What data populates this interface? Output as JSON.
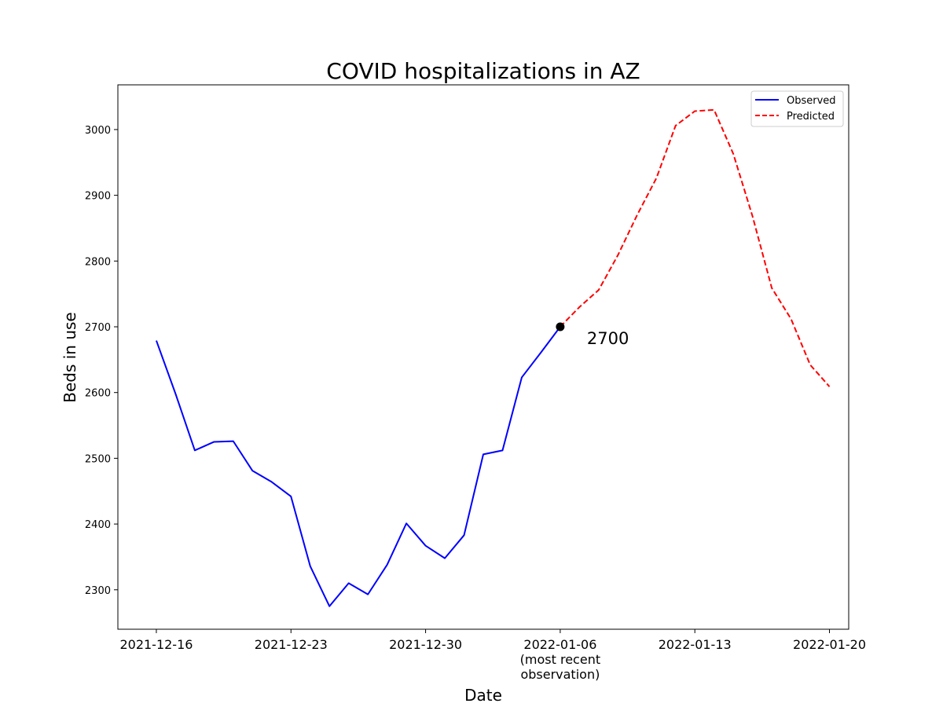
{
  "chart_data": {
    "type": "line",
    "title": "COVID hospitalizations in AZ",
    "xlabel": "Date",
    "ylabel": "Beds in use",
    "x_type": "date",
    "xlim": [
      "2021-12-14",
      "2022-01-21"
    ],
    "ylim": [
      2240,
      3068
    ],
    "grid": false,
    "legend_position": "top-right",
    "x_ticks": [
      {
        "value": "2021-12-16",
        "lines": [
          "2021-12-16"
        ]
      },
      {
        "value": "2021-12-23",
        "lines": [
          "2021-12-23"
        ]
      },
      {
        "value": "2021-12-30",
        "lines": [
          "2021-12-30"
        ]
      },
      {
        "value": "2022-01-06",
        "lines": [
          "2022-01-06",
          "(most recent",
          "observation)"
        ]
      },
      {
        "value": "2022-01-13",
        "lines": [
          "2022-01-13"
        ]
      },
      {
        "value": "2022-01-20",
        "lines": [
          "2022-01-20"
        ]
      }
    ],
    "y_ticks": [
      2300,
      2400,
      2500,
      2600,
      2700,
      2800,
      2900,
      3000
    ],
    "series": [
      {
        "name": "Observed",
        "color": "#0000ff",
        "style": "solid",
        "points": [
          [
            "2021-12-16",
            2679
          ],
          [
            "2021-12-17",
            2598
          ],
          [
            "2021-12-18",
            2512
          ],
          [
            "2021-12-19",
            2525
          ],
          [
            "2021-12-20",
            2526
          ],
          [
            "2021-12-21",
            2481
          ],
          [
            "2021-12-22",
            2464
          ],
          [
            "2021-12-23",
            2442
          ],
          [
            "2021-12-24",
            2336
          ],
          [
            "2021-12-25",
            2275
          ],
          [
            "2021-12-26",
            2310
          ],
          [
            "2021-12-27",
            2293
          ],
          [
            "2021-12-28",
            2338
          ],
          [
            "2021-12-29",
            2401
          ],
          [
            "2021-12-30",
            2367
          ],
          [
            "2021-12-31",
            2348
          ],
          [
            "2022-01-01",
            2383
          ],
          [
            "2022-01-02",
            2506
          ],
          [
            "2022-01-03",
            2512
          ],
          [
            "2022-01-04",
            2623
          ],
          [
            "2022-01-05",
            2661
          ],
          [
            "2022-01-06",
            2700
          ]
        ]
      },
      {
        "name": "Predicted",
        "color": "#ff0000",
        "style": "dashed",
        "points": [
          [
            "2022-01-06",
            2700
          ],
          [
            "2022-01-07",
            2730
          ],
          [
            "2022-01-08",
            2756
          ],
          [
            "2022-01-09",
            2809
          ],
          [
            "2022-01-10",
            2870
          ],
          [
            "2022-01-11",
            2926
          ],
          [
            "2022-01-12",
            3006
          ],
          [
            "2022-01-13",
            3028
          ],
          [
            "2022-01-14",
            3030
          ],
          [
            "2022-01-15",
            2963
          ],
          [
            "2022-01-16",
            2868
          ],
          [
            "2022-01-17",
            2759
          ],
          [
            "2022-01-18",
            2712
          ],
          [
            "2022-01-19",
            2642
          ],
          [
            "2022-01-20",
            2609
          ]
        ]
      }
    ],
    "annotations": [
      {
        "marker": "circle",
        "marker_color": "#000000",
        "x": "2022-01-06",
        "y": 2700,
        "text": "2700"
      }
    ]
  }
}
